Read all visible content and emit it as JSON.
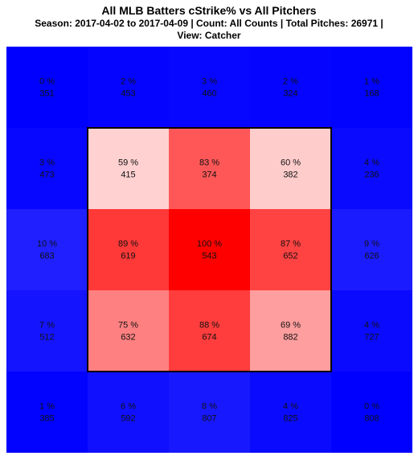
{
  "chart_data": {
    "type": "heatmap",
    "title": "All MLB Batters cStrike% vs All Pitchers",
    "subtitle_lines": [
      "Season: 2017-04-02 to 2017-04-09 | Count: All Counts | Total Pitches: 26971 |",
      "View: Catcher"
    ],
    "rows": 5,
    "cols": 5,
    "percent_labels": [
      [
        "0 %",
        "2 %",
        "3 %",
        "2 %",
        "1 %"
      ],
      [
        "3 %",
        "59 %",
        "83 %",
        "60 %",
        "4 %"
      ],
      [
        "10 %",
        "89 %",
        "100 %",
        "87 %",
        "9 %"
      ],
      [
        "7 %",
        "75 %",
        "88 %",
        "69 %",
        "4 %"
      ],
      [
        "1 %",
        "6 %",
        "8 %",
        "4 %",
        "0 %"
      ]
    ],
    "percent_values": [
      [
        0,
        2,
        3,
        2,
        1
      ],
      [
        3,
        59,
        83,
        60,
        4
      ],
      [
        10,
        89,
        100,
        87,
        9
      ],
      [
        7,
        75,
        88,
        69,
        4
      ],
      [
        1,
        6,
        8,
        4,
        0
      ]
    ],
    "pitch_counts": [
      [
        351,
        453,
        460,
        324,
        168
      ],
      [
        473,
        415,
        374,
        382,
        236
      ],
      [
        683,
        619,
        543,
        652,
        626
      ],
      [
        512,
        632,
        674,
        882,
        727
      ],
      [
        385,
        592,
        807,
        825,
        808
      ]
    ],
    "strike_zone": {
      "row_start": 1,
      "row_end": 3,
      "col_start": 1,
      "col_end": 3
    },
    "colors": {
      "low": "#0000ff",
      "mid": "#ffffff",
      "high": "#ff0000",
      "zone_border": "#000000"
    },
    "legend": "none",
    "grid": false
  }
}
